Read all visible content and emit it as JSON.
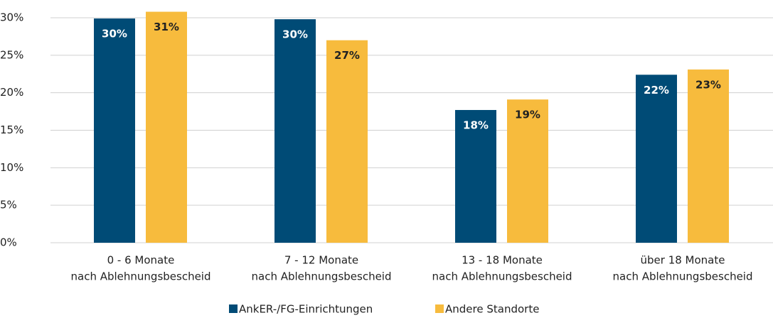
{
  "chart_data": {
    "type": "bar",
    "categories": [
      [
        "0 - 6 Monate",
        "nach Ablehnungsbescheid"
      ],
      [
        "7 - 12 Monate",
        "nach Ablehnungsbescheid"
      ],
      [
        "13 - 18 Monate",
        "nach Ablehnungsbescheid"
      ],
      [
        "über 18 Monate",
        "nach Ablehnungsbescheid"
      ]
    ],
    "series": [
      {
        "name": "AnkER-/FG-Einrichtungen",
        "color": "#004b76",
        "values": [
          29.9,
          29.8,
          17.7,
          22.4
        ],
        "value_labels": [
          "30%",
          "30%",
          "18%",
          "22%"
        ]
      },
      {
        "name": "Andere Standorte",
        "color": "#f7bb3d",
        "values": [
          30.8,
          27.0,
          19.1,
          23.1
        ],
        "value_labels": [
          "31%",
          "27%",
          "19%",
          "23%"
        ]
      }
    ],
    "ylim": [
      0,
      30
    ],
    "yticks": [
      {
        "value": 0,
        "label": "0%"
      },
      {
        "value": 5,
        "label": "5%"
      },
      {
        "value": 10,
        "label": "10%"
      },
      {
        "value": 15,
        "label": "15%"
      },
      {
        "value": 20,
        "label": "20%"
      },
      {
        "value": 25,
        "label": "25%"
      },
      {
        "value": 30,
        "label": "30%"
      }
    ],
    "grid": true,
    "legend": "bottom"
  }
}
